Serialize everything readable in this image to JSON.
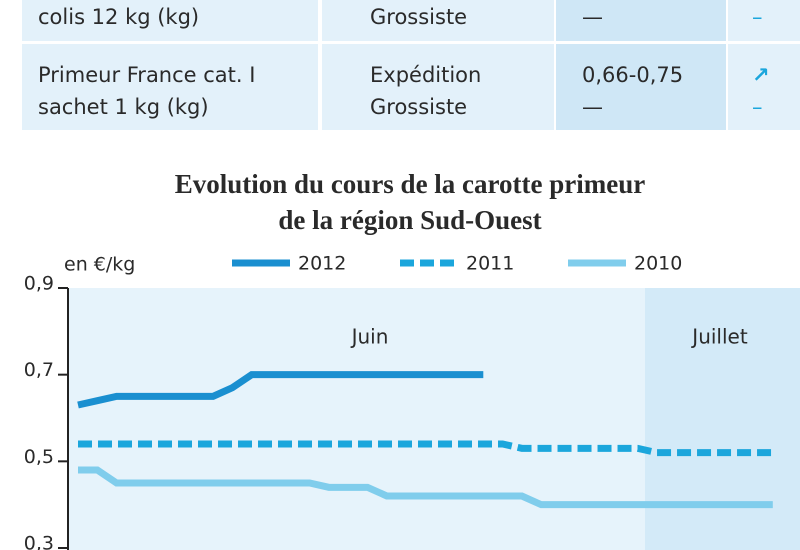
{
  "table": {
    "rows": [
      [
        [
          "colis 12 kg (kg)"
        ],
        [
          "Grossiste"
        ],
        [
          "—"
        ],
        [
          "–"
        ]
      ],
      [
        [
          "Primeur France cat. I",
          "sachet 1 kg (kg)"
        ],
        [
          "Expédition",
          "Grossiste"
        ],
        [
          "0,66-0,75",
          "—"
        ],
        [
          "↗",
          "–"
        ]
      ]
    ]
  },
  "chart_data": {
    "type": "line",
    "title": [
      "Evolution du cours de la carotte primeur",
      "de la région Sud-Ouest"
    ],
    "y_label": "en €/kg",
    "months": [
      "Juin",
      "Juillet"
    ],
    "categories": [
      null,
      null,
      null,
      null,
      null,
      null,
      null,
      null,
      null,
      null,
      null,
      null,
      null,
      null,
      null,
      null,
      null,
      null,
      null,
      null,
      null,
      null,
      null,
      null,
      null,
      null,
      null,
      null,
      null,
      null,
      null,
      null,
      null,
      null,
      null,
      null,
      null
    ],
    "series": [
      {
        "name": "2012",
        "color": "#1a8fd0",
        "dashed": false,
        "values": [
          0.63,
          0.64,
          0.65,
          0.65,
          0.65,
          0.65,
          0.65,
          0.65,
          0.67,
          0.7,
          0.7,
          0.7,
          0.7,
          0.7,
          0.7,
          0.7,
          0.7,
          0.7,
          0.7,
          0.7,
          0.7,
          0.7,
          null,
          null,
          null,
          null,
          null,
          null,
          null,
          null,
          null,
          null,
          null,
          null,
          null,
          null,
          null
        ]
      },
      {
        "name": "2011",
        "color": "#1ba6dc",
        "dashed": true,
        "values": [
          0.54,
          0.54,
          0.54,
          0.54,
          0.54,
          0.54,
          0.54,
          0.54,
          0.54,
          0.54,
          0.54,
          0.54,
          0.54,
          0.54,
          0.54,
          0.54,
          0.54,
          0.54,
          0.54,
          0.54,
          0.54,
          0.54,
          0.54,
          0.53,
          0.53,
          0.53,
          0.53,
          0.53,
          0.53,
          0.53,
          0.52,
          0.52,
          0.52,
          0.52,
          0.52,
          0.52,
          0.52
        ]
      },
      {
        "name": "2010",
        "color": "#80cdec",
        "dashed": false,
        "values": [
          0.48,
          0.48,
          0.45,
          0.45,
          0.45,
          0.45,
          0.45,
          0.45,
          0.45,
          0.45,
          0.45,
          0.45,
          0.45,
          0.44,
          0.44,
          0.44,
          0.42,
          0.42,
          0.42,
          0.42,
          0.42,
          0.42,
          0.42,
          0.42,
          0.4,
          0.4,
          0.4,
          0.4,
          0.4,
          0.4,
          0.4,
          0.4,
          0.4,
          0.4,
          0.4,
          0.4,
          0.4
        ]
      }
    ],
    "ylim": [
      0.3,
      0.9
    ],
    "yticks": [
      {
        "value": 0.3,
        "label": "0,3"
      },
      {
        "value": 0.5,
        "label": "0,5"
      },
      {
        "value": 0.7,
        "label": "0,7"
      },
      {
        "value": 0.9,
        "label": "0,9"
      }
    ]
  }
}
